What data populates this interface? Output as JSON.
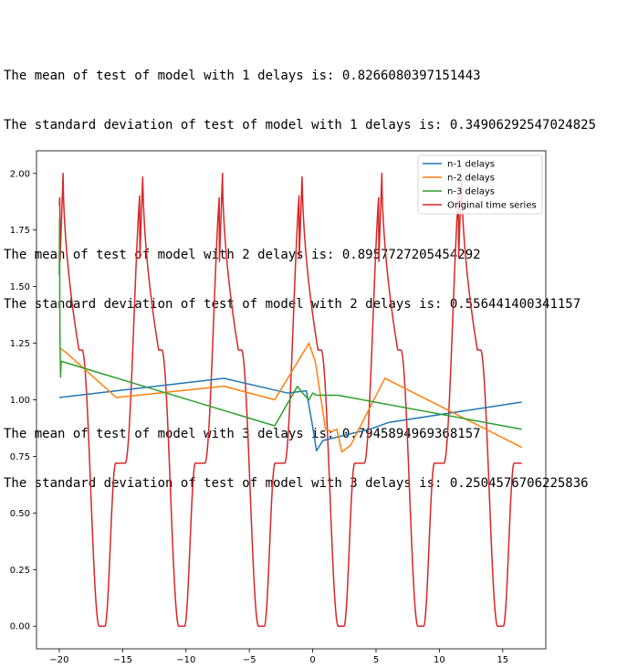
{
  "output": {
    "lines": [
      {
        "mean": "The mean of test of model with 1 delays is: 0.8266080397151443",
        "std": "The standard deviation of test of model with 1 delays is: 0.34906292547024825"
      },
      {
        "mean": "The mean of test of model with 2 delays is: 0.8957727205454292",
        "std": "The standard deviation of test of model with 2 delays is: 0.556441400341157"
      },
      {
        "mean": "The mean of test of model with 3 delays is: 0.7945894969368157",
        "std": "The standard deviation of test of model with 3 delays is: 0.2504576706225836"
      }
    ]
  },
  "chart_data": {
    "type": "line",
    "title": "",
    "xlabel": "",
    "ylabel": "",
    "xlim": [
      -21.8,
      18.4
    ],
    "ylim": [
      -0.1,
      2.1
    ],
    "xticks": [
      -20,
      -15,
      -10,
      -5,
      0,
      5,
      10,
      15
    ],
    "xtick_labels": [
      "−20",
      "−15",
      "−10",
      "−5",
      "0",
      "5",
      "10",
      "15"
    ],
    "yticks": [
      0.0,
      0.25,
      0.5,
      0.75,
      1.0,
      1.25,
      1.5,
      1.75,
      2.0
    ],
    "ytick_labels": [
      "0.00",
      "0.25",
      "0.50",
      "0.75",
      "1.00",
      "1.25",
      "1.50",
      "1.75",
      "2.00"
    ],
    "grid": false,
    "legend_position": "top-right",
    "series": [
      {
        "name": "n-1 delays",
        "color": "#1f77b4",
        "x": [
          -20,
          -7,
          -2,
          -0.5,
          0,
          0.3,
          0.8,
          3,
          4.5,
          6,
          16.5
        ],
        "y": [
          1.01,
          1.095,
          1.03,
          1.04,
          0.88,
          0.775,
          0.82,
          0.85,
          0.87,
          0.9,
          0.99
        ]
      },
      {
        "name": "n-2 delays",
        "color": "#ff7f0e",
        "x": [
          -20,
          -19.5,
          -15.5,
          -7,
          -3,
          -0.3,
          0.2,
          0.8,
          1,
          1.5,
          1.9,
          2.3,
          3,
          5.7,
          16.5
        ],
        "y": [
          1.23,
          1.21,
          1.01,
          1.06,
          1.0,
          1.25,
          1.17,
          0.95,
          0.87,
          0.86,
          0.87,
          0.77,
          0.8,
          1.095,
          0.79
        ]
      },
      {
        "name": "n-3 delays",
        "color": "#2ca02c",
        "x": [
          -20,
          -19.98,
          -19.95,
          -19.9,
          -19.85,
          -3,
          -1.2,
          -0.8,
          -0.3,
          0,
          0.3,
          2,
          16.5
        ],
        "y": [
          1.55,
          1.8,
          1.28,
          1.1,
          1.17,
          0.885,
          1.06,
          1.03,
          1.0,
          1.03,
          1.02,
          1.02,
          0.87
        ]
      },
      {
        "name": "Original time series",
        "color": "#d62728",
        "function": "piecewise periodic, period 6.29: fast rise 0 to 2, gradual fall to a plateau near 1.22, then a steep fall to 0",
        "x_range": [
          -20,
          16.5
        ],
        "peaks": [
          2.0
        ],
        "troughs": [
          0.0
        ]
      }
    ]
  }
}
